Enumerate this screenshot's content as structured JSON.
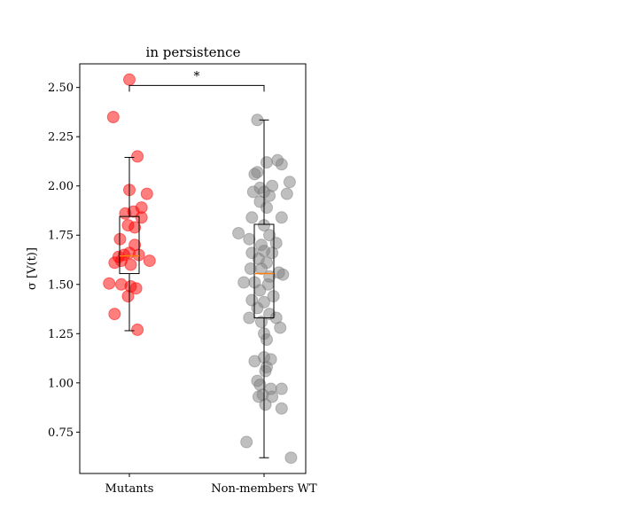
{
  "chart_data": {
    "type": "scatter",
    "subtype": "box-strip",
    "title": "in persistence",
    "xlabel": "",
    "ylabel": "σ [V(t)]",
    "ylim": [
      0.54,
      2.62
    ],
    "yticks": [
      0.75,
      1.0,
      1.25,
      1.5,
      1.75,
      2.0,
      2.25,
      2.5
    ],
    "ytick_labels": [
      "0.75",
      "1.00",
      "1.25",
      "1.50",
      "1.75",
      "2.00",
      "2.25",
      "2.50"
    ],
    "categories": [
      "Mutants",
      "Non-members WT"
    ],
    "significance": {
      "label": "*",
      "between": [
        "Mutants",
        "Non-members WT"
      ],
      "y": 2.51
    },
    "grid": false,
    "series": [
      {
        "category": "Mutants",
        "color": "#ff0000",
        "box": {
          "q1": 1.555,
          "median": 1.645,
          "q3": 1.845,
          "whisker_low": 1.265,
          "whisker_high": 2.145
        },
        "points": [
          {
            "jitter": 0.0,
            "y": 2.54
          },
          {
            "jitter": -0.12,
            "y": 2.35
          },
          {
            "jitter": 0.06,
            "y": 2.15
          },
          {
            "jitter": 0.0,
            "y": 1.98
          },
          {
            "jitter": 0.13,
            "y": 1.96
          },
          {
            "jitter": 0.09,
            "y": 1.89
          },
          {
            "jitter": -0.03,
            "y": 1.86
          },
          {
            "jitter": 0.03,
            "y": 1.87
          },
          {
            "jitter": 0.09,
            "y": 1.84
          },
          {
            "jitter": -0.01,
            "y": 1.8
          },
          {
            "jitter": 0.04,
            "y": 1.79
          },
          {
            "jitter": -0.07,
            "y": 1.73
          },
          {
            "jitter": 0.04,
            "y": 1.7
          },
          {
            "jitter": 0.07,
            "y": 1.65
          },
          {
            "jitter": -0.08,
            "y": 1.64
          },
          {
            "jitter": -0.04,
            "y": 1.65
          },
          {
            "jitter": 0.0,
            "y": 1.66
          },
          {
            "jitter": -0.11,
            "y": 1.61
          },
          {
            "jitter": -0.06,
            "y": 1.62
          },
          {
            "jitter": 0.01,
            "y": 1.6
          },
          {
            "jitter": 0.15,
            "y": 1.62
          },
          {
            "jitter": -0.15,
            "y": 1.505
          },
          {
            "jitter": -0.06,
            "y": 1.5
          },
          {
            "jitter": 0.01,
            "y": 1.49
          },
          {
            "jitter": 0.05,
            "y": 1.48
          },
          {
            "jitter": -0.01,
            "y": 1.44
          },
          {
            "jitter": -0.11,
            "y": 1.35
          },
          {
            "jitter": 0.06,
            "y": 1.27
          }
        ]
      },
      {
        "category": "Non-members WT",
        "color": "#808080",
        "box": {
          "q1": 1.33,
          "median": 1.555,
          "q3": 1.805,
          "whisker_low": 0.62,
          "whisker_high": 2.335
        },
        "points": [
          {
            "jitter": -0.05,
            "y": 2.335
          },
          {
            "jitter": 0.1,
            "y": 2.13
          },
          {
            "jitter": 0.02,
            "y": 2.12
          },
          {
            "jitter": 0.13,
            "y": 2.11
          },
          {
            "jitter": -0.05,
            "y": 2.07
          },
          {
            "jitter": -0.07,
            "y": 2.06
          },
          {
            "jitter": 0.19,
            "y": 2.02
          },
          {
            "jitter": 0.06,
            "y": 2.0
          },
          {
            "jitter": -0.03,
            "y": 1.99
          },
          {
            "jitter": -0.08,
            "y": 1.97
          },
          {
            "jitter": 0.0,
            "y": 1.97
          },
          {
            "jitter": 0.17,
            "y": 1.96
          },
          {
            "jitter": 0.04,
            "y": 1.95
          },
          {
            "jitter": -0.03,
            "y": 1.92
          },
          {
            "jitter": 0.02,
            "y": 1.89
          },
          {
            "jitter": -0.09,
            "y": 1.84
          },
          {
            "jitter": 0.13,
            "y": 1.84
          },
          {
            "jitter": 0.0,
            "y": 1.8
          },
          {
            "jitter": -0.19,
            "y": 1.76
          },
          {
            "jitter": 0.04,
            "y": 1.75
          },
          {
            "jitter": -0.11,
            "y": 1.73
          },
          {
            "jitter": 0.09,
            "y": 1.71
          },
          {
            "jitter": -0.02,
            "y": 1.7
          },
          {
            "jitter": -0.09,
            "y": 1.66
          },
          {
            "jitter": 0.0,
            "y": 1.67
          },
          {
            "jitter": 0.06,
            "y": 1.66
          },
          {
            "jitter": -0.04,
            "y": 1.63
          },
          {
            "jitter": 0.02,
            "y": 1.61
          },
          {
            "jitter": -0.1,
            "y": 1.58
          },
          {
            "jitter": -0.02,
            "y": 1.58
          },
          {
            "jitter": 0.11,
            "y": 1.56
          },
          {
            "jitter": 0.14,
            "y": 1.55
          },
          {
            "jitter": 0.04,
            "y": 1.54
          },
          {
            "jitter": -0.15,
            "y": 1.51
          },
          {
            "jitter": -0.07,
            "y": 1.51
          },
          {
            "jitter": 0.03,
            "y": 1.5
          },
          {
            "jitter": -0.03,
            "y": 1.47
          },
          {
            "jitter": 0.07,
            "y": 1.44
          },
          {
            "jitter": -0.09,
            "y": 1.42
          },
          {
            "jitter": 0.0,
            "y": 1.41
          },
          {
            "jitter": -0.05,
            "y": 1.38
          },
          {
            "jitter": 0.04,
            "y": 1.35
          },
          {
            "jitter": -0.11,
            "y": 1.33
          },
          {
            "jitter": 0.09,
            "y": 1.33
          },
          {
            "jitter": -0.02,
            "y": 1.31
          },
          {
            "jitter": 0.12,
            "y": 1.28
          },
          {
            "jitter": 0.0,
            "y": 1.25
          },
          {
            "jitter": 0.02,
            "y": 1.22
          },
          {
            "jitter": 0.0,
            "y": 1.13
          },
          {
            "jitter": 0.05,
            "y": 1.12
          },
          {
            "jitter": -0.07,
            "y": 1.11
          },
          {
            "jitter": 0.02,
            "y": 1.08
          },
          {
            "jitter": 0.01,
            "y": 1.06
          },
          {
            "jitter": -0.05,
            "y": 1.01
          },
          {
            "jitter": -0.03,
            "y": 0.99
          },
          {
            "jitter": 0.05,
            "y": 0.97
          },
          {
            "jitter": 0.13,
            "y": 0.97
          },
          {
            "jitter": -0.01,
            "y": 0.94
          },
          {
            "jitter": -0.04,
            "y": 0.93
          },
          {
            "jitter": 0.06,
            "y": 0.93
          },
          {
            "jitter": 0.01,
            "y": 0.89
          },
          {
            "jitter": 0.13,
            "y": 0.87
          },
          {
            "jitter": -0.13,
            "y": 0.7
          },
          {
            "jitter": 0.2,
            "y": 0.62
          }
        ]
      }
    ]
  }
}
